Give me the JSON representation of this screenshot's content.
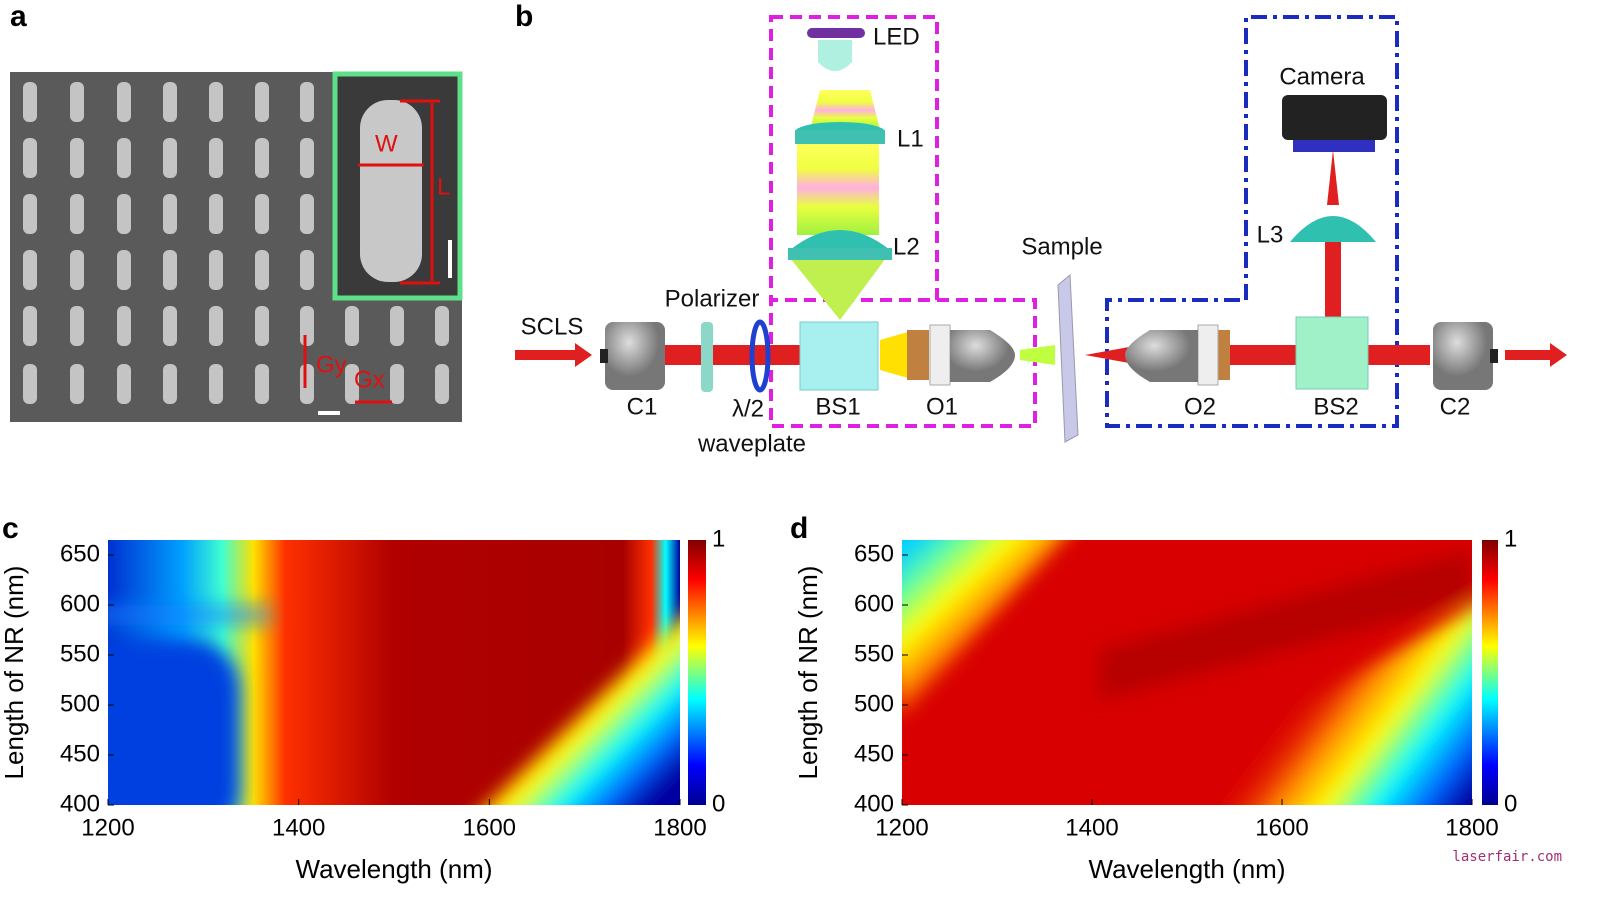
{
  "panel_labels": [
    "a",
    "b",
    "c",
    "d"
  ],
  "panel_a": {
    "labels": {
      "w": "W",
      "l": "L",
      "gy": "Gy",
      "gx": "Gx"
    }
  },
  "panel_b": {
    "labels": {
      "led": "LED",
      "l1": "L1",
      "l2": "L2",
      "sample": "Sample",
      "camera": "Camera",
      "l3": "L3",
      "scls": "SCLS",
      "polarizer": "Polarizer",
      "c1": "C1",
      "halfwave": "λ/2",
      "waveplate": "waveplate",
      "bs1": "BS1",
      "o1": "O1",
      "o2": "O2",
      "bs2": "BS2",
      "c2": "C2"
    }
  },
  "chart_data": [
    {
      "type": "heatmap",
      "xlabel": "Wavelength (nm)",
      "ylabel": "Length of NR (nm)",
      "xlim": [
        1200,
        1800
      ],
      "ylim": [
        400,
        665
      ],
      "xticks": [
        1200,
        1400,
        1600,
        1800
      ],
      "yticks": [
        400,
        450,
        500,
        550,
        600,
        650
      ],
      "zlim": [
        0,
        1
      ],
      "zticks": [
        0,
        1
      ]
    },
    {
      "type": "heatmap",
      "xlabel": "Wavelength (nm)",
      "ylabel": "Length of NR (nm)",
      "xlim": [
        1200,
        1800
      ],
      "ylim": [
        400,
        665
      ],
      "xticks": [
        1200,
        1400,
        1600,
        1800
      ],
      "yticks": [
        400,
        450,
        500,
        550,
        600,
        650
      ],
      "zlim": [
        0,
        1
      ],
      "zticks": [
        0,
        1
      ]
    }
  ],
  "watermark": "laserfair.com"
}
